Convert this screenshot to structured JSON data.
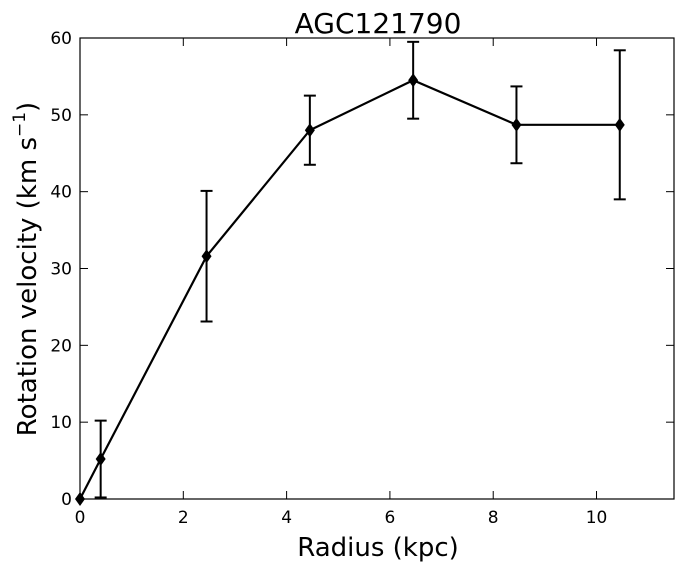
{
  "chart_data": {
    "type": "line",
    "title": "AGC121790",
    "xlabel": "Radius (kpc)",
    "ylabel_main": "Rotation velocity (km s",
    "ylabel_sup": "−1",
    "ylabel_end": ")",
    "xlim": [
      0,
      11.5
    ],
    "ylim": [
      0,
      60
    ],
    "xticks": [
      0,
      2,
      4,
      6,
      8,
      10
    ],
    "yticks": [
      0,
      10,
      20,
      30,
      40,
      50,
      60
    ],
    "grid": false,
    "legend": "none",
    "series": [
      {
        "color": "#000000",
        "marker": "diamond",
        "x": [
          0,
          0.4,
          2.45,
          4.45,
          6.45,
          8.45,
          10.45
        ],
        "y": [
          0,
          5.2,
          31.6,
          48.0,
          54.5,
          48.7,
          48.7
        ],
        "err_low": [
          null,
          5.0,
          8.5,
          4.5,
          5.0,
          5.0,
          9.7
        ],
        "err_high": [
          null,
          5.0,
          8.5,
          4.5,
          5.0,
          5.0,
          9.7
        ]
      }
    ]
  }
}
